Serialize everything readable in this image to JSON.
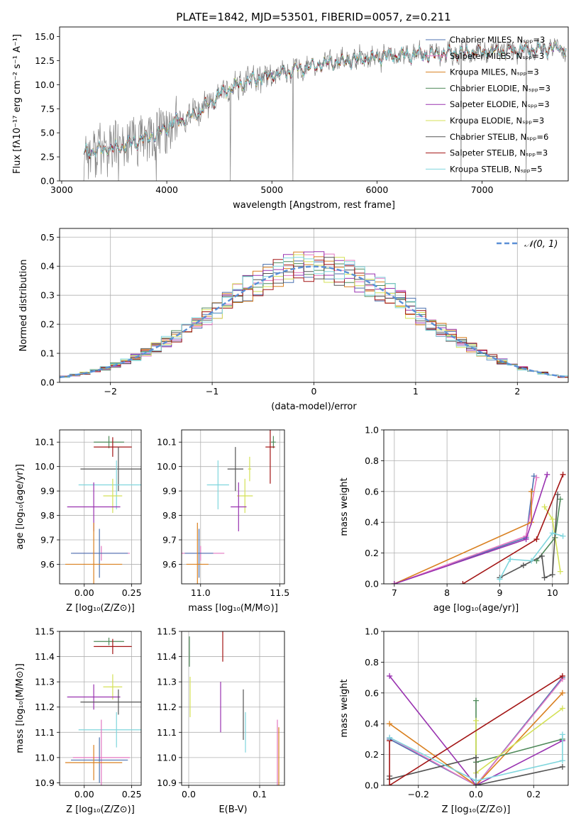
{
  "figure_title": "PLATE=1842, MJD=53501, FIBERID=0057, z=0.211",
  "chart_data": [
    {
      "id": "spectrum",
      "type": "line",
      "title": "PLATE=1842, MJD=53501, FIBERID=0057, z=0.211",
      "xlabel": "wavelength [Angstrom, rest frame]",
      "ylabel": "Flux [fλ10⁻¹⁷ erg cm⁻² s⁻¹ A⁻¹]",
      "xlim": [
        2980,
        7820
      ],
      "ylim": [
        0,
        16
      ],
      "xticks": [
        3000,
        4000,
        5000,
        6000,
        7000
      ],
      "yticks": [
        0.0,
        2.5,
        5.0,
        7.5,
        10.0,
        12.5,
        15.0
      ],
      "grid": false,
      "legend_position": "top-right",
      "series": [
        {
          "name": "Chabrier MILES, Nₛₚₚ=3",
          "color": "#4c72b0"
        },
        {
          "name": "Salpeter MILES, Nₛₚₚ=3",
          "color": "#e377c2"
        },
        {
          "name": "Kroupa MILES, Nₛₚₚ=3",
          "color": "#d98020"
        },
        {
          "name": "Chabrier ELODIE, Nₛₚₚ=3",
          "color": "#4f8a5a"
        },
        {
          "name": "Salpeter ELODIE, Nₛₚₚ=3",
          "color": "#9932b0"
        },
        {
          "name": "Kroupa ELODIE, Nₛₚₚ=3",
          "color": "#d4e157"
        },
        {
          "name": "Chabrier STELIB, Nₛₚₚ=6",
          "color": "#555555"
        },
        {
          "name": "Salpeter STELIB, Nₛₚₚ=3",
          "color": "#a31515"
        },
        {
          "name": "Kroupa STELIB, Nₛₚₚ=5",
          "color": "#7fd6dd"
        }
      ],
      "observed_color": "#808080",
      "continuum_anchors": [
        [
          3210,
          3.0
        ],
        [
          3550,
          3.5
        ],
        [
          3900,
          4.8
        ],
        [
          4100,
          6.3
        ],
        [
          4300,
          7.0
        ],
        [
          4500,
          9.0
        ],
        [
          4800,
          10.5
        ],
        [
          5100,
          11.2
        ],
        [
          5400,
          12.0
        ],
        [
          5800,
          12.6
        ],
        [
          6200,
          13.0
        ],
        [
          6600,
          13.2
        ],
        [
          7000,
          13.4
        ],
        [
          7400,
          13.6
        ],
        [
          7800,
          13.8
        ]
      ]
    },
    {
      "id": "residuals",
      "type": "histogram",
      "xlabel": "(data-model)/error",
      "ylabel": "Normed distribution",
      "xlim": [
        -2.5,
        2.5
      ],
      "ylim": [
        0,
        0.53
      ],
      "xticks": [
        -2,
        -1,
        0,
        1,
        2
      ],
      "yticks": [
        0.0,
        0.1,
        0.2,
        0.3,
        0.4,
        0.5
      ],
      "grid": true,
      "legend_position": "top-right",
      "legend_label": "𝒩(0, 1)",
      "reference_color": "#5b8fd6",
      "bin_width": 0.1
    },
    {
      "id": "z-age",
      "type": "errorbar",
      "xlabel": "Z [log₁₀(Z/Z⊙)]",
      "ylabel": "age  [log₁₀(age/yr)]",
      "xlim": [
        -0.13,
        0.3
      ],
      "ylim": [
        9.52,
        10.15
      ],
      "xticks": [
        0.0,
        0.25
      ],
      "yticks": [
        9.6,
        9.7,
        9.8,
        9.9,
        10.0,
        10.1
      ],
      "grid": true,
      "points": [
        {
          "color": "#4f8a5a",
          "x": 0.13,
          "xerr": 0.08,
          "y": 10.1,
          "yerr": 0.025
        },
        {
          "color": "#a31515",
          "x": 0.15,
          "xerr": 0.1,
          "y": 10.08,
          "yerr": 0.04
        },
        {
          "color": "#555555",
          "x": 0.18,
          "xerr": 0.2,
          "y": 9.99,
          "yerr": 0.09
        },
        {
          "color": "#7fd6dd",
          "x": 0.17,
          "xerr": 0.2,
          "y": 9.925,
          "yerr": 0.1
        },
        {
          "color": "#d4e157",
          "x": 0.15,
          "xerr": 0.05,
          "y": 9.88,
          "yerr": 0.07
        },
        {
          "color": "#9932b0",
          "x": 0.05,
          "xerr": 0.14,
          "y": 9.835,
          "yerr": 0.1
        },
        {
          "color": "#e377c2",
          "x": 0.09,
          "xerr": 0.15,
          "y": 9.645,
          "yerr": 0.03
        },
        {
          "color": "#4c72b0",
          "x": 0.08,
          "xerr": 0.15,
          "y": 9.645,
          "yerr": 0.1
        },
        {
          "color": "#d98020",
          "x": 0.05,
          "xerr": 0.15,
          "y": 9.6,
          "yerr": 0.17
        }
      ]
    },
    {
      "id": "mass-age",
      "type": "errorbar",
      "xlabel": "mass [log₁₀(M/M⊙)]",
      "ylabel": "",
      "xlim": [
        10.88,
        11.53
      ],
      "ylim": [
        9.52,
        10.15
      ],
      "xticks": [
        11.0,
        11.5
      ],
      "yticks": [
        9.6,
        9.7,
        9.8,
        9.9,
        10.0,
        10.1
      ],
      "grid": true,
      "points": [
        {
          "color": "#4f8a5a",
          "x": 11.46,
          "xerr": 0.015,
          "y": 10.1,
          "yerr": 0.025
        },
        {
          "color": "#a31515",
          "x": 11.44,
          "xerr": 0.03,
          "y": 10.08,
          "yerr": 0.15
        },
        {
          "color": "#555555",
          "x": 11.22,
          "xerr": 0.05,
          "y": 9.99,
          "yerr": 0.09
        },
        {
          "color": "#d4e157",
          "x": 11.31,
          "xerr": 0.01,
          "y": 9.99,
          "yerr": 0.05
        },
        {
          "color": "#7fd6dd",
          "x": 11.11,
          "xerr": 0.07,
          "y": 9.925,
          "yerr": 0.1
        },
        {
          "color": "#d4e157",
          "x": 11.28,
          "xerr": 0.05,
          "y": 9.88,
          "yerr": 0.07
        },
        {
          "color": "#9932b0",
          "x": 11.24,
          "xerr": 0.05,
          "y": 9.835,
          "yerr": 0.1
        },
        {
          "color": "#e377c2",
          "x": 11.0,
          "xerr": 0.15,
          "y": 9.645,
          "yerr": 0.03
        },
        {
          "color": "#4c72b0",
          "x": 10.99,
          "xerr": 0.09,
          "y": 9.645,
          "yerr": 0.1
        },
        {
          "color": "#d98020",
          "x": 10.98,
          "xerr": 0.07,
          "y": 9.6,
          "yerr": 0.17
        }
      ]
    },
    {
      "id": "age-weight",
      "type": "line",
      "xlabel": "age  [log₁₀(age/yr)]",
      "ylabel": "mass weight",
      "xlim": [
        6.8,
        10.3
      ],
      "ylim": [
        0,
        1
      ],
      "xticks": [
        7,
        8,
        9,
        10
      ],
      "yticks": [
        0.0,
        0.2,
        0.4,
        0.6,
        0.8,
        1.0
      ],
      "grid": true,
      "series": [
        {
          "color": "#4c72b0",
          "points": [
            [
              7.0,
              0.0
            ],
            [
              9.5,
              0.3
            ],
            [
              9.65,
              0.7
            ]
          ]
        },
        {
          "color": "#e377c2",
          "points": [
            [
              7.0,
              0.0
            ],
            [
              9.5,
              0.31
            ],
            [
              9.7,
              0.69
            ]
          ]
        },
        {
          "color": "#d98020",
          "points": [
            [
              7.0,
              0.0
            ],
            [
              9.6,
              0.4
            ],
            [
              9.6,
              0.6
            ]
          ]
        },
        {
          "color": "#4f8a5a",
          "points": [
            [
              9.7,
              0.15
            ],
            [
              10.05,
              0.3
            ],
            [
              10.15,
              0.55
            ]
          ]
        },
        {
          "color": "#9932b0",
          "points": [
            [
              7.0,
              0.0
            ],
            [
              9.5,
              0.29
            ],
            [
              9.9,
              0.71
            ]
          ]
        },
        {
          "color": "#d4e157",
          "points": [
            [
              9.85,
              0.5
            ],
            [
              10.0,
              0.42
            ],
            [
              10.15,
              0.08
            ]
          ]
        },
        {
          "color": "#555555",
          "points": [
            [
              9.0,
              0.04
            ],
            [
              9.45,
              0.12
            ],
            [
              9.8,
              0.18
            ],
            [
              9.85,
              0.04
            ],
            [
              10.0,
              0.06
            ],
            [
              10.1,
              0.58
            ]
          ]
        },
        {
          "color": "#a31515",
          "points": [
            [
              8.3,
              0.0
            ],
            [
              9.7,
              0.29
            ],
            [
              10.2,
              0.71
            ]
          ]
        },
        {
          "color": "#7fd6dd",
          "points": [
            [
              9.0,
              0.03
            ],
            [
              9.2,
              0.16
            ],
            [
              9.6,
              0.15
            ],
            [
              10.0,
              0.33
            ],
            [
              10.2,
              0.31
            ]
          ]
        }
      ]
    },
    {
      "id": "z-mass",
      "type": "errorbar",
      "xlabel": "Z [log₁₀(Z/Z⊙)]",
      "ylabel": "mass [log₁₀(M/M⊙)]",
      "xlim": [
        -0.13,
        0.3
      ],
      "ylim": [
        10.89,
        11.5
      ],
      "xticks": [
        0.0,
        0.25
      ],
      "yticks": [
        10.9,
        11.0,
        11.1,
        11.2,
        11.3,
        11.4,
        11.5
      ],
      "grid": true,
      "points": [
        {
          "color": "#4f8a5a",
          "x": 0.13,
          "xerr": 0.08,
          "y": 11.46,
          "yerr": 0.015
        },
        {
          "color": "#a31515",
          "x": 0.15,
          "xerr": 0.1,
          "y": 11.44,
          "yerr": 0.03
        },
        {
          "color": "#d4e157",
          "x": 0.15,
          "xerr": 0.05,
          "y": 11.28,
          "yerr": 0.05
        },
        {
          "color": "#9932b0",
          "x": 0.05,
          "xerr": 0.14,
          "y": 11.24,
          "yerr": 0.05
        },
        {
          "color": "#555555",
          "x": 0.18,
          "xerr": 0.2,
          "y": 11.22,
          "yerr": 0.05
        },
        {
          "color": "#7fd6dd",
          "x": 0.17,
          "xerr": 0.2,
          "y": 11.11,
          "yerr": 0.07
        },
        {
          "color": "#e377c2",
          "x": 0.09,
          "xerr": 0.15,
          "y": 11.0,
          "yerr": 0.15
        },
        {
          "color": "#4c72b0",
          "x": 0.08,
          "xerr": 0.15,
          "y": 10.99,
          "yerr": 0.09
        },
        {
          "color": "#d98020",
          "x": 0.05,
          "xerr": 0.15,
          "y": 10.98,
          "yerr": 0.07
        }
      ]
    },
    {
      "id": "ebv-mass",
      "type": "errorbar",
      "xlabel": "E(B-V)",
      "ylabel": "",
      "xlim": [
        -0.01,
        0.135
      ],
      "ylim": [
        10.89,
        11.5
      ],
      "xticks": [
        0.0,
        0.1
      ],
      "yticks": [
        10.9,
        11.0,
        11.1,
        11.2,
        11.3,
        11.4,
        11.5
      ],
      "grid": true,
      "points": [
        {
          "color": "#4f8a5a",
          "x": 0.001,
          "xerr": 0,
          "y": 11.42,
          "yerr": 0.06
        },
        {
          "color": "#d4e157",
          "x": 0.002,
          "xerr": 0,
          "y": 11.24,
          "yerr": 0.08
        },
        {
          "color": "#a31515",
          "x": 0.048,
          "xerr": 0,
          "y": 11.44,
          "yerr": 0.06
        },
        {
          "color": "#9932b0",
          "x": 0.045,
          "xerr": 0,
          "y": 11.2,
          "yerr": 0.1
        },
        {
          "color": "#555555",
          "x": 0.077,
          "xerr": 0,
          "y": 11.17,
          "yerr": 0.1
        },
        {
          "color": "#7fd6dd",
          "x": 0.08,
          "xerr": 0,
          "y": 11.1,
          "yerr": 0.08
        },
        {
          "color": "#e377c2",
          "x": 0.125,
          "xerr": 0,
          "y": 11.0,
          "yerr": 0.15
        },
        {
          "color": "#d98020",
          "x": 0.127,
          "xerr": 0,
          "y": 11.0,
          "yerr": 0.12
        }
      ]
    },
    {
      "id": "z-weight",
      "type": "line",
      "xlabel": "Z [log₁₀(Z/Z⊙)]",
      "ylabel": "mass weight",
      "xlim": [
        -0.32,
        0.32
      ],
      "ylim": [
        0,
        1
      ],
      "xticks": [
        -0.2,
        0.0,
        0.2
      ],
      "yticks": [
        0.0,
        0.2,
        0.4,
        0.6,
        0.8,
        1.0
      ],
      "grid": true,
      "series": [
        {
          "color": "#4c72b0",
          "points": [
            [
              -0.3,
              0.3
            ],
            [
              0.0,
              0.0
            ],
            [
              0.3,
              0.7
            ]
          ]
        },
        {
          "color": "#e377c2",
          "points": [
            [
              -0.3,
              0.31
            ],
            [
              0.0,
              0.0
            ],
            [
              0.3,
              0.69
            ]
          ]
        },
        {
          "color": "#d98020",
          "points": [
            [
              -0.3,
              0.4
            ],
            [
              0.0,
              0.0
            ],
            [
              0.3,
              0.6
            ]
          ]
        },
        {
          "color": "#4f8a5a",
          "points": [
            [
              0.0,
              0.55
            ],
            [
              0.0,
              0.15
            ],
            [
              0.3,
              0.3
            ]
          ]
        },
        {
          "color": "#9932b0",
          "points": [
            [
              -0.3,
              0.71
            ],
            [
              0.0,
              0.0
            ],
            [
              0.3,
              0.29
            ]
          ]
        },
        {
          "color": "#d4e157",
          "points": [
            [
              0.0,
              0.42
            ],
            [
              0.0,
              0.08
            ],
            [
              0.3,
              0.5
            ]
          ]
        },
        {
          "color": "#555555",
          "points": [
            [
              -0.3,
              0.06
            ],
            [
              -0.3,
              0.04
            ],
            [
              0.0,
              0.18
            ],
            [
              0.0,
              0.0
            ],
            [
              0.3,
              0.12
            ]
          ]
        },
        {
          "color": "#a31515",
          "points": [
            [
              -0.3,
              0.29
            ],
            [
              -0.3,
              0.0
            ],
            [
              0.3,
              0.71
            ]
          ]
        },
        {
          "color": "#7fd6dd",
          "points": [
            [
              -0.3,
              0.31
            ],
            [
              0.0,
              0.03
            ],
            [
              0.3,
              0.16
            ],
            [
              0.3,
              0.33
            ]
          ]
        }
      ]
    }
  ]
}
